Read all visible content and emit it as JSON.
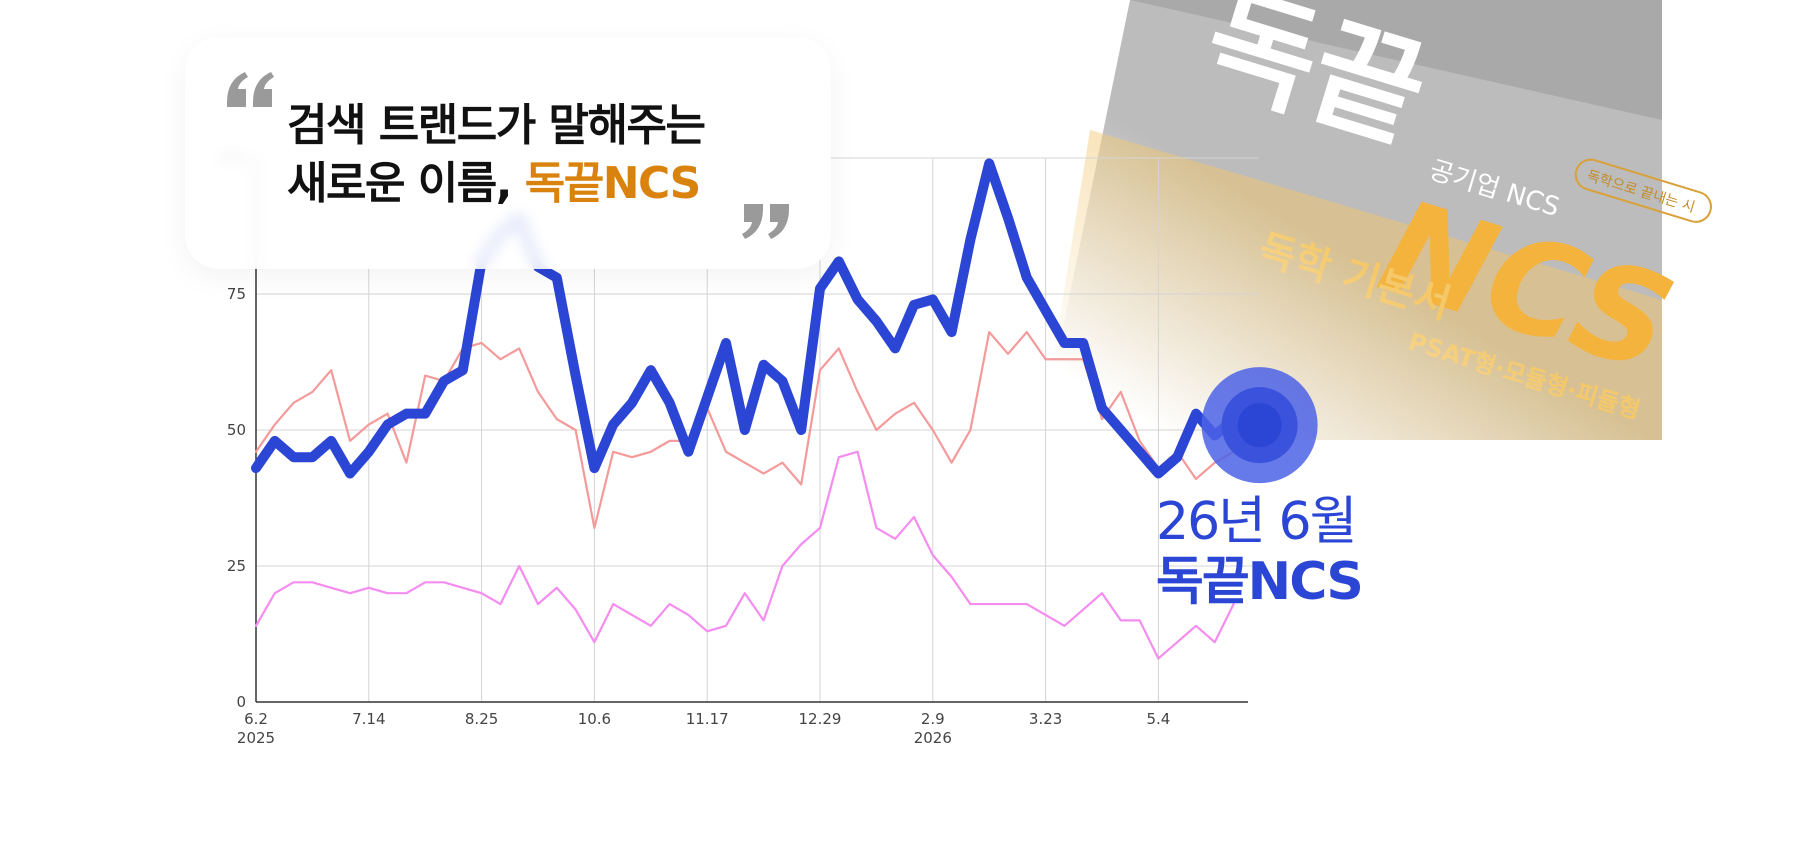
{
  "chart_data": {
    "type": "line",
    "categories": [
      {
        "label": "6.2",
        "year": "2025"
      },
      null,
      null,
      null,
      null,
      null,
      "7.14",
      null,
      null,
      null,
      null,
      null,
      "8.25",
      null,
      null,
      null,
      null,
      null,
      "10.6",
      null,
      null,
      null,
      null,
      null,
      "11.17",
      null,
      null,
      null,
      null,
      null,
      "12.29",
      null,
      null,
      null,
      null,
      null,
      {
        "label": "2.9",
        "year": "2026"
      },
      null,
      null,
      null,
      null,
      null,
      "3.23",
      null,
      null,
      null,
      null,
      null,
      "5.4",
      null,
      null,
      null,
      null
    ],
    "series": [
      {
        "color": "#2b45d4",
        "values": [
          43,
          48,
          45,
          45,
          48,
          42,
          46,
          51,
          53,
          53,
          59,
          61,
          81,
          86,
          89,
          80,
          78,
          60,
          43,
          51,
          55,
          61,
          55,
          46,
          56,
          66,
          50,
          62,
          59,
          50,
          76,
          81,
          74,
          70,
          65,
          73,
          74,
          68,
          85,
          99,
          89,
          78,
          72,
          66,
          66,
          54,
          50,
          46,
          42,
          45,
          53,
          49,
          52
        ]
      },
      {
        "color": "#f59a9a",
        "values": [
          46,
          51,
          55,
          57,
          61,
          48,
          51,
          53,
          44,
          60,
          59,
          65,
          66,
          63,
          65,
          57,
          52,
          50,
          32,
          46,
          45,
          46,
          48,
          48,
          54,
          46,
          44,
          42,
          44,
          40,
          61,
          65,
          57,
          50,
          53,
          55,
          50,
          44,
          50,
          68,
          64,
          68,
          63,
          63,
          63,
          52,
          57,
          48,
          43,
          46,
          41,
          44,
          46
        ]
      },
      {
        "color": "#f58cf0",
        "values": [
          14,
          20,
          22,
          22,
          21,
          20,
          21,
          20,
          20,
          22,
          22,
          21,
          20,
          18,
          25,
          18,
          21,
          17,
          11,
          18,
          16,
          14,
          18,
          16,
          13,
          14,
          20,
          15,
          25,
          29,
          32,
          45,
          46,
          32,
          30,
          34,
          27,
          23,
          18,
          18,
          18,
          18,
          16,
          14,
          17,
          20,
          15,
          15,
          8,
          11,
          14,
          11,
          18
        ]
      }
    ],
    "ylim": [
      0,
      100
    ],
    "yticks": [
      0,
      25,
      50,
      75,
      100
    ],
    "grid": true
  },
  "headline": {
    "line1": "검색 트랜드가 말해주는",
    "line2": "새로운 이름,",
    "highlight": "독끝NCS"
  },
  "callout": {
    "date": "26년 6월",
    "product": "독끝NCS"
  },
  "book": {
    "series_name": "독학으로 끝내는 시",
    "brand": "독끝",
    "subtitle": "공기업 NCS",
    "logo": "NCS",
    "kind": "독학 기본서",
    "types": "PSAT형·모듈형·피듈형"
  }
}
